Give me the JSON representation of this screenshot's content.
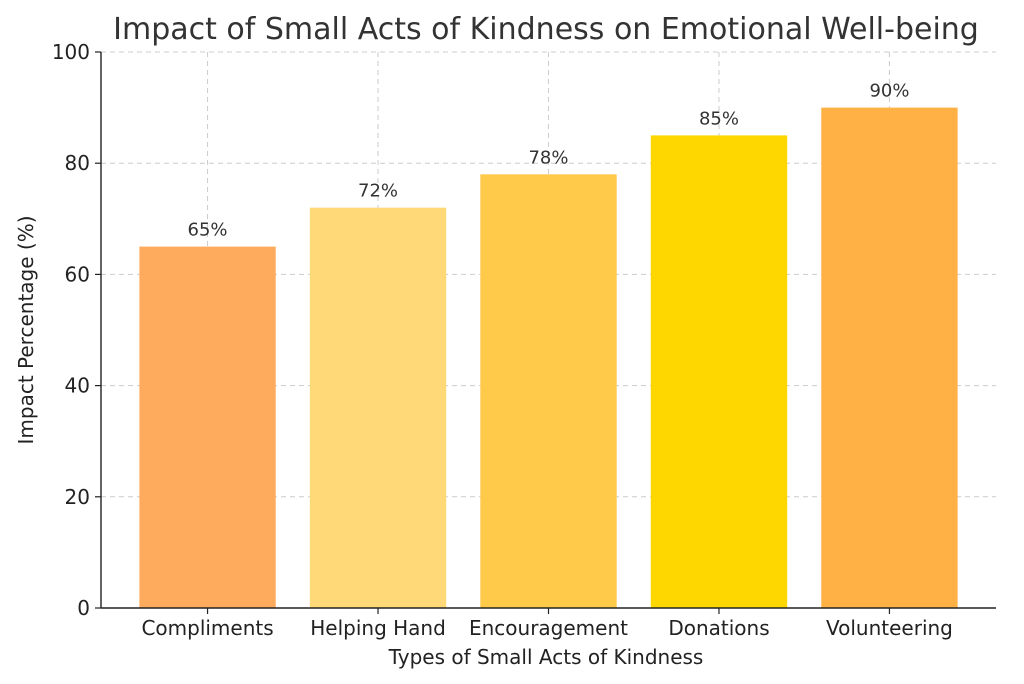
{
  "chart_data": {
    "type": "bar",
    "title": "Impact of Small Acts of Kindness on Emotional Well-being",
    "xlabel": "Types of Small Acts of Kindness",
    "ylabel": "Impact Percentage (%)",
    "categories": [
      "Compliments",
      "Helping Hand",
      "Encouragement",
      "Donations",
      "Volunteering"
    ],
    "values": [
      65,
      72,
      78,
      85,
      90
    ],
    "data_labels": [
      "65%",
      "72%",
      "78%",
      "85%",
      "90%"
    ],
    "colors": [
      "#FFAB5E",
      "#FFD878",
      "#FFC94A",
      "#FFD700",
      "#FFB145"
    ],
    "ylim": [
      0,
      100
    ],
    "yticks": [
      0,
      20,
      40,
      60,
      80,
      100
    ],
    "grid": true
  }
}
